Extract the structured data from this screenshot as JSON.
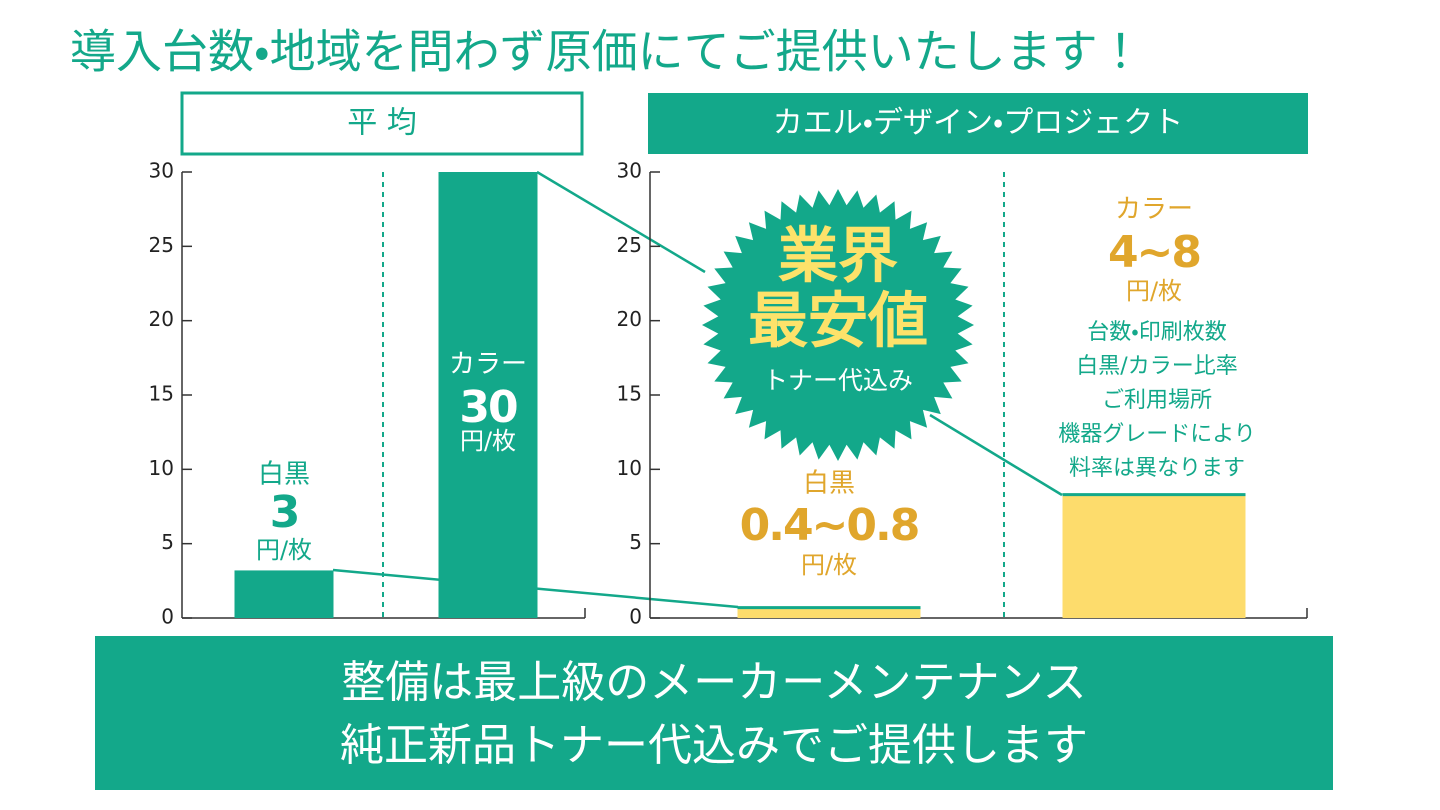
{
  "headline": "導入台数・地域を問わず原価にてご提供いたします！",
  "chart_data": [
    {
      "type": "bar",
      "title": "平 均",
      "categories": [
        "白黒",
        "カラー"
      ],
      "values": [
        3.2,
        30
      ],
      "price_labels": [
        "3",
        "30"
      ],
      "unit": "円/枚",
      "color": "#13a88a",
      "label_colors": [
        "#13a88a",
        "#ffffff"
      ],
      "ylim": [
        0,
        30
      ],
      "yticks": [
        0,
        5,
        10,
        15,
        20,
        25,
        30
      ]
    },
    {
      "type": "bar",
      "title": "カエル・デザイン・プロジェクト",
      "categories": [
        "白黒",
        "カラー"
      ],
      "values": [
        0.7,
        8.3
      ],
      "price_labels": [
        "0.4~0.8",
        "4~8"
      ],
      "unit": "円/枚",
      "color": "#fddc6c",
      "label_colors": [
        "#e0a62c",
        "#e0a62c"
      ],
      "ylim": [
        0,
        30
      ],
      "yticks": [
        0,
        5,
        10,
        15,
        20,
        25,
        30
      ]
    }
  ],
  "badge": {
    "lines": [
      "業界",
      "最安値"
    ],
    "sub": "トナー代込み"
  },
  "note": [
    "台数・印刷枚数",
    "白黒/カラー比率",
    "ご利用場所",
    "機器グレードにより",
    "料率は異なります"
  ],
  "footer": [
    "整備は最上級のメーカーメンテナンス",
    "純正新品トナー代込みでご提供します"
  ]
}
